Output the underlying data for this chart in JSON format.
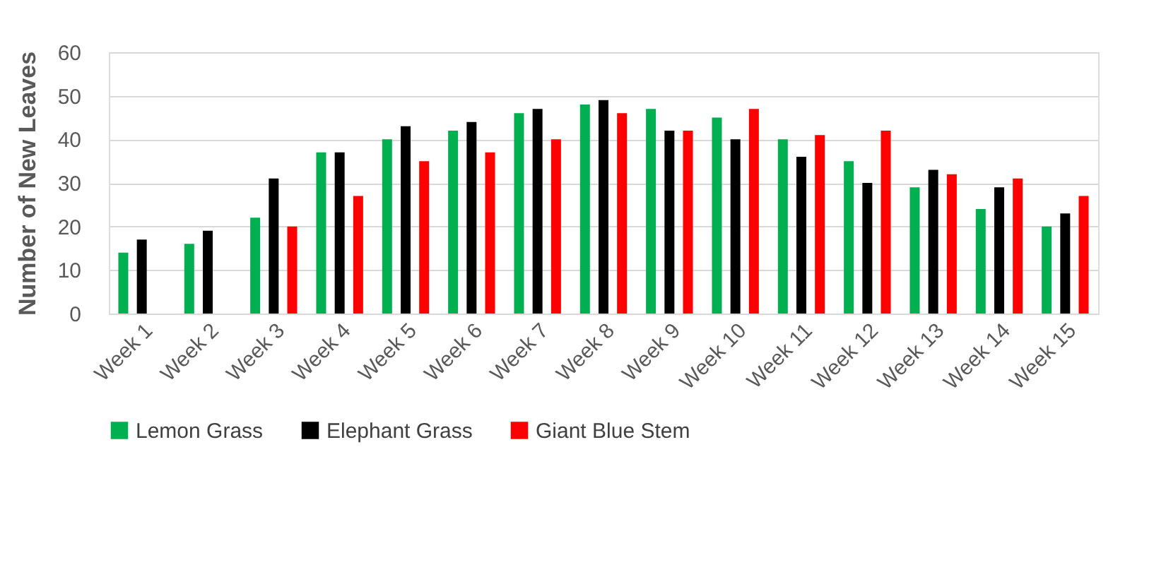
{
  "chart_data": {
    "type": "bar",
    "ylabel": "Number of New Leaves",
    "categories": [
      "Week 1",
      "Week 2",
      "Week 3",
      "Week 4",
      "Week 5",
      "Week 6",
      "Week 7",
      "Week 8",
      "Week 9",
      "Week 10",
      "Week 11",
      "Week 12",
      "Week 13",
      "Week 14",
      "Week 15"
    ],
    "series": [
      {
        "name": "Lemon Grass",
        "color": "#00b050",
        "values": [
          14,
          16,
          22,
          37,
          40,
          42,
          46,
          48,
          47,
          45,
          40,
          35,
          29,
          24,
          20
        ]
      },
      {
        "name": "Elephant Grass",
        "color": "#000000",
        "values": [
          17,
          19,
          31,
          37,
          43,
          44,
          47,
          49,
          42,
          40,
          36,
          30,
          33,
          29,
          23
        ]
      },
      {
        "name": "Giant Blue Stem",
        "color": "#ff0000",
        "values": [
          null,
          null,
          20,
          27,
          35,
          37,
          40,
          46,
          42,
          47,
          41,
          42,
          32,
          31,
          27
        ]
      }
    ],
    "ylim": [
      0,
      60
    ],
    "yticks": [
      0,
      10,
      20,
      30,
      40,
      50,
      60
    ],
    "grid": "y",
    "legend": "bottom"
  }
}
